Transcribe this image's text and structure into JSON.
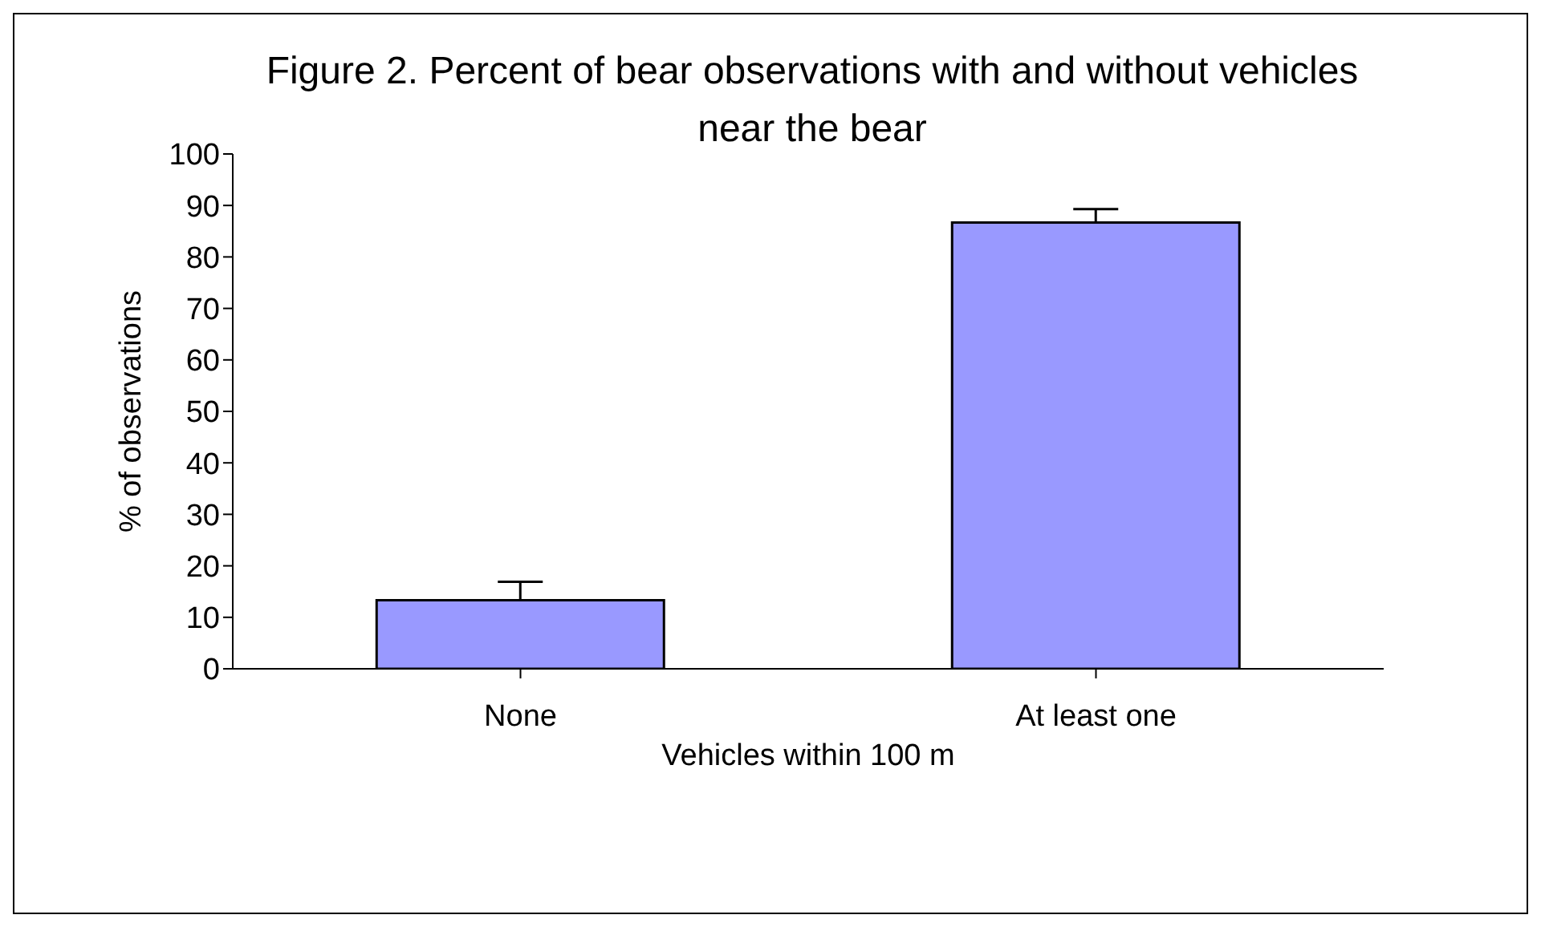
{
  "chart_data": {
    "type": "bar",
    "title": "Figure 2. Percent of bear observations with and without vehicles near the bear",
    "xlabel": "Vehicles within 100 m",
    "ylabel": "% of observations",
    "categories": [
      "None",
      "At least one"
    ],
    "values": [
      13.3,
      86.7
    ],
    "errors": [
      [
        13.3,
        16.9
      ],
      [
        86.7,
        89.3
      ]
    ],
    "color": "#9999ff",
    "ylim": [
      0,
      100
    ],
    "yticks": [
      0,
      10,
      20,
      30,
      40,
      50,
      60,
      70,
      80,
      90,
      100
    ],
    "grid": false
  }
}
